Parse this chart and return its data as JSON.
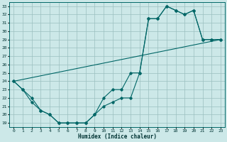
{
  "xlabel": "Humidex (Indice chaleur)",
  "background_color": "#cce8e8",
  "grid_color": "#9bbfbf",
  "line_color": "#006666",
  "xlim": [
    -0.5,
    23.5
  ],
  "ylim": [
    18.5,
    33.5
  ],
  "xticks": [
    0,
    1,
    2,
    3,
    4,
    5,
    6,
    7,
    8,
    9,
    10,
    11,
    12,
    13,
    14,
    15,
    16,
    17,
    18,
    19,
    20,
    21,
    22,
    23
  ],
  "yticks": [
    19,
    20,
    21,
    22,
    23,
    24,
    25,
    26,
    27,
    28,
    29,
    30,
    31,
    32,
    33
  ],
  "upper_curve": [
    [
      0,
      24
    ],
    [
      1,
      23
    ],
    [
      2,
      22
    ],
    [
      3,
      20.5
    ],
    [
      4,
      20
    ],
    [
      5,
      19
    ],
    [
      6,
      19
    ],
    [
      7,
      19
    ],
    [
      8,
      19
    ],
    [
      9,
      20
    ],
    [
      10,
      22
    ],
    [
      11,
      23
    ],
    [
      12,
      23
    ],
    [
      13,
      25
    ],
    [
      14,
      25
    ],
    [
      15,
      31.5
    ],
    [
      16,
      31.5
    ],
    [
      17,
      33
    ],
    [
      18,
      32.5
    ],
    [
      19,
      32
    ],
    [
      20,
      32.5
    ],
    [
      21,
      29
    ],
    [
      22,
      29
    ],
    [
      23,
      29
    ]
  ],
  "lower_curve": [
    [
      0,
      24
    ],
    [
      1,
      23
    ],
    [
      2,
      21.5
    ],
    [
      3,
      20.5
    ],
    [
      4,
      20
    ],
    [
      5,
      19
    ],
    [
      6,
      19
    ],
    [
      7,
      19
    ],
    [
      8,
      19
    ],
    [
      9,
      20
    ],
    [
      10,
      21
    ],
    [
      11,
      21.5
    ],
    [
      12,
      22
    ],
    [
      13,
      22
    ],
    [
      14,
      25
    ],
    [
      15,
      31.5
    ],
    [
      16,
      31.5
    ],
    [
      17,
      33
    ],
    [
      18,
      32.5
    ],
    [
      19,
      32
    ],
    [
      20,
      32.5
    ],
    [
      21,
      29
    ],
    [
      22,
      29
    ],
    [
      23,
      29
    ]
  ],
  "straight_line": [
    [
      0,
      24
    ],
    [
      23,
      29
    ]
  ]
}
